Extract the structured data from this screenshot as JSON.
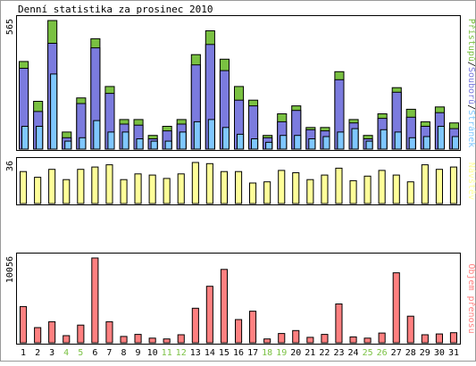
{
  "chart_data": [
    {
      "type": "bar",
      "title": "Denní statistika za prosinec 2010",
      "ymax_label": "565",
      "categories": [
        "1",
        "2",
        "3",
        "4",
        "5",
        "6",
        "7",
        "8",
        "9",
        "10",
        "11",
        "12",
        "13",
        "14",
        "15",
        "16",
        "17",
        "18",
        "19",
        "20",
        "21",
        "22",
        "23",
        "24",
        "25",
        "26",
        "27",
        "28",
        "29",
        "30",
        "31"
      ],
      "weekend_days": [
        "4",
        "5",
        "11",
        "12",
        "18",
        "19",
        "25",
        "26"
      ],
      "legend": [
        "Přístupů",
        "Souborů",
        "Stránek"
      ],
      "colors": {
        "Přístupů": "#7ac142",
        "Souborů": "#7b7bde",
        "Stránek": "#7fc7ff"
      },
      "series": [
        {
          "name": "Přístupů",
          "values": [
            385,
            210,
            565,
            75,
            225,
            485,
            275,
            130,
            130,
            60,
            100,
            130,
            415,
            520,
            395,
            275,
            215,
            60,
            155,
            190,
            95,
            95,
            340,
            130,
            60,
            155,
            270,
            175,
            120,
            185,
            115
          ]
        },
        {
          "name": "Souborů",
          "values": [
            355,
            165,
            465,
            50,
            200,
            445,
            245,
            110,
            105,
            45,
            80,
            110,
            370,
            460,
            345,
            215,
            190,
            50,
            120,
            170,
            85,
            80,
            305,
            115,
            45,
            135,
            250,
            140,
            100,
            160,
            90
          ]
        },
        {
          "name": "Stránek",
          "values": [
            100,
            100,
            330,
            35,
            50,
            125,
            75,
            75,
            45,
            35,
            35,
            75,
            120,
            130,
            95,
            65,
            45,
            30,
            60,
            60,
            45,
            55,
            75,
            90,
            35,
            85,
            75,
            50,
            55,
            100,
            55
          ]
        }
      ]
    },
    {
      "type": "bar",
      "ymax_label": "36",
      "legend": [
        "Návštěv"
      ],
      "colors": {
        "Návštěv": "#ffff99"
      },
      "series": [
        {
          "name": "Návštěv",
          "values": [
            28,
            23,
            30,
            21,
            30,
            32,
            34,
            21,
            26,
            25,
            22,
            26,
            36,
            35,
            28,
            28,
            18,
            19,
            29,
            27,
            21,
            25,
            31,
            20,
            24,
            29,
            25,
            19,
            34,
            30,
            32
          ]
        }
      ]
    },
    {
      "type": "bar",
      "ymax_label": "10056",
      "legend": [
        "Objem přenosu"
      ],
      "colors": {
        "Objem přenosu": "#ff8080"
      },
      "series": [
        {
          "name": "Objem přenosu",
          "values": [
            4300,
            1800,
            2500,
            850,
            2100,
            10056,
            2500,
            750,
            1000,
            550,
            450,
            950,
            4100,
            6700,
            8700,
            2750,
            3750,
            450,
            1100,
            1450,
            650,
            1000,
            4600,
            700,
            550,
            1150,
            8300,
            3150,
            950,
            1050,
            1200
          ]
        }
      ]
    }
  ]
}
